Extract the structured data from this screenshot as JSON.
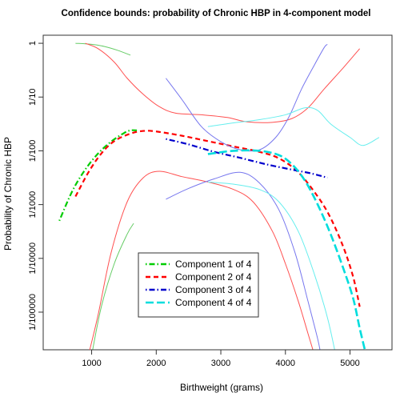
{
  "chart_data": {
    "type": "line",
    "title": "Confidence bounds: probability of Chronic HBP in 4-component model",
    "xlabel": "Birthweight (grams)",
    "ylabel": "Probability of Chronic HBP",
    "xlim": [
      250,
      5650
    ],
    "ylim_log10": [
      -5.7,
      0.15
    ],
    "x_ticks": [
      {
        "value": 1000,
        "label": "1000"
      },
      {
        "value": 2000,
        "label": "2000"
      },
      {
        "value": 3000,
        "label": "3000"
      },
      {
        "value": 4000,
        "label": "4000"
      },
      {
        "value": 5000,
        "label": "5000"
      }
    ],
    "y_ticks": [
      {
        "value": 1,
        "label": "1"
      },
      {
        "value": 0.1,
        "label": "1/10"
      },
      {
        "value": 0.01,
        "label": "1/100"
      },
      {
        "value": 0.001,
        "label": "1/1000"
      },
      {
        "value": 0.0001,
        "label": "1/10000"
      },
      {
        "value": 1e-05,
        "label": "1/100000"
      }
    ],
    "legend_position": "bottom-left",
    "grid": false,
    "series": [
      {
        "name": "Component 1 of 4",
        "color": "#00cc00",
        "dash": "dotdash",
        "width": 2.2,
        "points": [
          [
            500,
            -3.3
          ],
          [
            700,
            -2.75
          ],
          [
            900,
            -2.35
          ],
          [
            1100,
            -2.05
          ],
          [
            1300,
            -1.83
          ],
          [
            1500,
            -1.67
          ],
          [
            1600,
            -1.62
          ],
          [
            1700,
            -1.62
          ]
        ]
      },
      {
        "name": "Component 1 upper bound",
        "color": "#66cc66",
        "dash": "solid",
        "width": 1,
        "points": [
          [
            750,
            0
          ],
          [
            1000,
            -0.02
          ],
          [
            1200,
            -0.06
          ],
          [
            1400,
            -0.13
          ],
          [
            1600,
            -0.22
          ]
        ]
      },
      {
        "name": "Component 1 lower bound",
        "color": "#66cc66",
        "dash": "solid",
        "width": 1,
        "points": [
          [
            1000,
            -5.8
          ],
          [
            1150,
            -4.9
          ],
          [
            1350,
            -4.1
          ],
          [
            1550,
            -3.55
          ],
          [
            1650,
            -3.35
          ]
        ]
      },
      {
        "name": "Component 2 of 4",
        "color": "#ff0000",
        "dash": "dash",
        "width": 2.2,
        "points": [
          [
            750,
            -2.85
          ],
          [
            950,
            -2.4
          ],
          [
            1150,
            -2.05
          ],
          [
            1350,
            -1.82
          ],
          [
            1600,
            -1.68
          ],
          [
            1800,
            -1.63
          ],
          [
            2000,
            -1.64
          ],
          [
            2400,
            -1.72
          ],
          [
            2800,
            -1.82
          ],
          [
            3200,
            -1.92
          ],
          [
            3600,
            -2.02
          ],
          [
            3900,
            -2.14
          ],
          [
            4200,
            -2.4
          ],
          [
            4500,
            -2.85
          ],
          [
            4700,
            -3.25
          ],
          [
            4900,
            -3.8
          ],
          [
            5050,
            -4.35
          ],
          [
            5150,
            -4.9
          ]
        ]
      },
      {
        "name": "Component 2 upper bound",
        "color": "#ff5050",
        "dash": "solid",
        "width": 1,
        "points": [
          [
            900,
            0
          ],
          [
            1100,
            -0.1
          ],
          [
            1350,
            -0.35
          ],
          [
            1550,
            -0.65
          ],
          [
            1800,
            -0.95
          ],
          [
            2050,
            -1.18
          ],
          [
            2300,
            -1.3
          ],
          [
            2700,
            -1.33
          ],
          [
            3100,
            -1.38
          ],
          [
            3400,
            -1.46
          ],
          [
            3800,
            -1.47
          ],
          [
            4100,
            -1.4
          ],
          [
            4350,
            -1.2
          ],
          [
            4600,
            -0.85
          ],
          [
            4900,
            -0.45
          ],
          [
            5150,
            -0.1
          ]
        ]
      },
      {
        "name": "Component 2 lower bound",
        "color": "#ff5050",
        "dash": "solid",
        "width": 1,
        "points": [
          [
            950,
            -5.8
          ],
          [
            1100,
            -5.05
          ],
          [
            1300,
            -3.9
          ],
          [
            1550,
            -2.95
          ],
          [
            1800,
            -2.5
          ],
          [
            2050,
            -2.38
          ],
          [
            2400,
            -2.48
          ],
          [
            2800,
            -2.58
          ],
          [
            3200,
            -2.72
          ],
          [
            3500,
            -2.95
          ],
          [
            3800,
            -3.5
          ],
          [
            4000,
            -4.1
          ],
          [
            4200,
            -4.8
          ],
          [
            4350,
            -5.4
          ],
          [
            4450,
            -5.8
          ]
        ]
      },
      {
        "name": "Component 3 of 4",
        "color": "#0000cc",
        "dash": "dotdash",
        "width": 2.2,
        "points": [
          [
            2150,
            -1.78
          ],
          [
            2500,
            -1.88
          ],
          [
            2900,
            -2.02
          ],
          [
            3300,
            -2.13
          ],
          [
            3700,
            -2.25
          ],
          [
            4100,
            -2.35
          ],
          [
            4400,
            -2.42
          ],
          [
            4650,
            -2.5
          ]
        ]
      },
      {
        "name": "Component 3 upper bound",
        "color": "#7777ee",
        "dash": "solid",
        "width": 1,
        "points": [
          [
            2150,
            -0.65
          ],
          [
            2400,
            -1.05
          ],
          [
            2700,
            -1.55
          ],
          [
            3000,
            -1.83
          ],
          [
            3300,
            -1.98
          ],
          [
            3600,
            -1.98
          ],
          [
            3850,
            -1.75
          ],
          [
            4050,
            -1.38
          ],
          [
            4250,
            -0.85
          ],
          [
            4450,
            -0.4
          ],
          [
            4600,
            -0.08
          ],
          [
            4650,
            -0.02
          ]
        ]
      },
      {
        "name": "Component 3 lower bound",
        "color": "#7777ee",
        "dash": "solid",
        "width": 1,
        "points": [
          [
            2150,
            -2.9
          ],
          [
            2500,
            -2.7
          ],
          [
            2900,
            -2.52
          ],
          [
            3300,
            -2.4
          ],
          [
            3600,
            -2.6
          ],
          [
            3900,
            -3.1
          ],
          [
            4150,
            -3.9
          ],
          [
            4350,
            -4.8
          ],
          [
            4500,
            -5.5
          ],
          [
            4550,
            -5.8
          ]
        ]
      },
      {
        "name": "Component 4 of 4",
        "color": "#00dddd",
        "dash": "longdash",
        "width": 2.6,
        "points": [
          [
            2800,
            -2.06
          ],
          [
            3200,
            -2.0
          ],
          [
            3600,
            -2.0
          ],
          [
            3900,
            -2.08
          ],
          [
            4100,
            -2.25
          ],
          [
            4300,
            -2.55
          ],
          [
            4500,
            -3.0
          ],
          [
            4700,
            -3.55
          ],
          [
            4900,
            -4.2
          ],
          [
            5050,
            -4.75
          ],
          [
            5150,
            -5.3
          ],
          [
            5250,
            -5.8
          ]
        ]
      },
      {
        "name": "Component 4 upper bound",
        "color": "#66eeee",
        "dash": "solid",
        "width": 1,
        "points": [
          [
            2800,
            -1.55
          ],
          [
            3200,
            -1.48
          ],
          [
            3600,
            -1.42
          ],
          [
            4000,
            -1.33
          ],
          [
            4300,
            -1.2
          ],
          [
            4500,
            -1.25
          ],
          [
            4700,
            -1.5
          ],
          [
            5000,
            -1.75
          ],
          [
            5200,
            -1.9
          ],
          [
            5450,
            -1.75
          ]
        ]
      },
      {
        "name": "Component 4 lower bound",
        "color": "#66eeee",
        "dash": "solid",
        "width": 1,
        "points": [
          [
            2800,
            -2.58
          ],
          [
            3200,
            -2.62
          ],
          [
            3600,
            -2.72
          ],
          [
            3900,
            -2.95
          ],
          [
            4200,
            -3.5
          ],
          [
            4450,
            -4.3
          ],
          [
            4650,
            -5.1
          ],
          [
            4780,
            -5.8
          ]
        ]
      }
    ],
    "legend": [
      {
        "label": "Component 1 of 4",
        "color": "#00cc00",
        "dash": "dotdash"
      },
      {
        "label": "Component 2 of 4",
        "color": "#ff0000",
        "dash": "dash"
      },
      {
        "label": "Component 3 of 4",
        "color": "#0000cc",
        "dash": "dotdash"
      },
      {
        "label": "Component 4 of 4",
        "color": "#00dddd",
        "dash": "longdash"
      }
    ]
  }
}
